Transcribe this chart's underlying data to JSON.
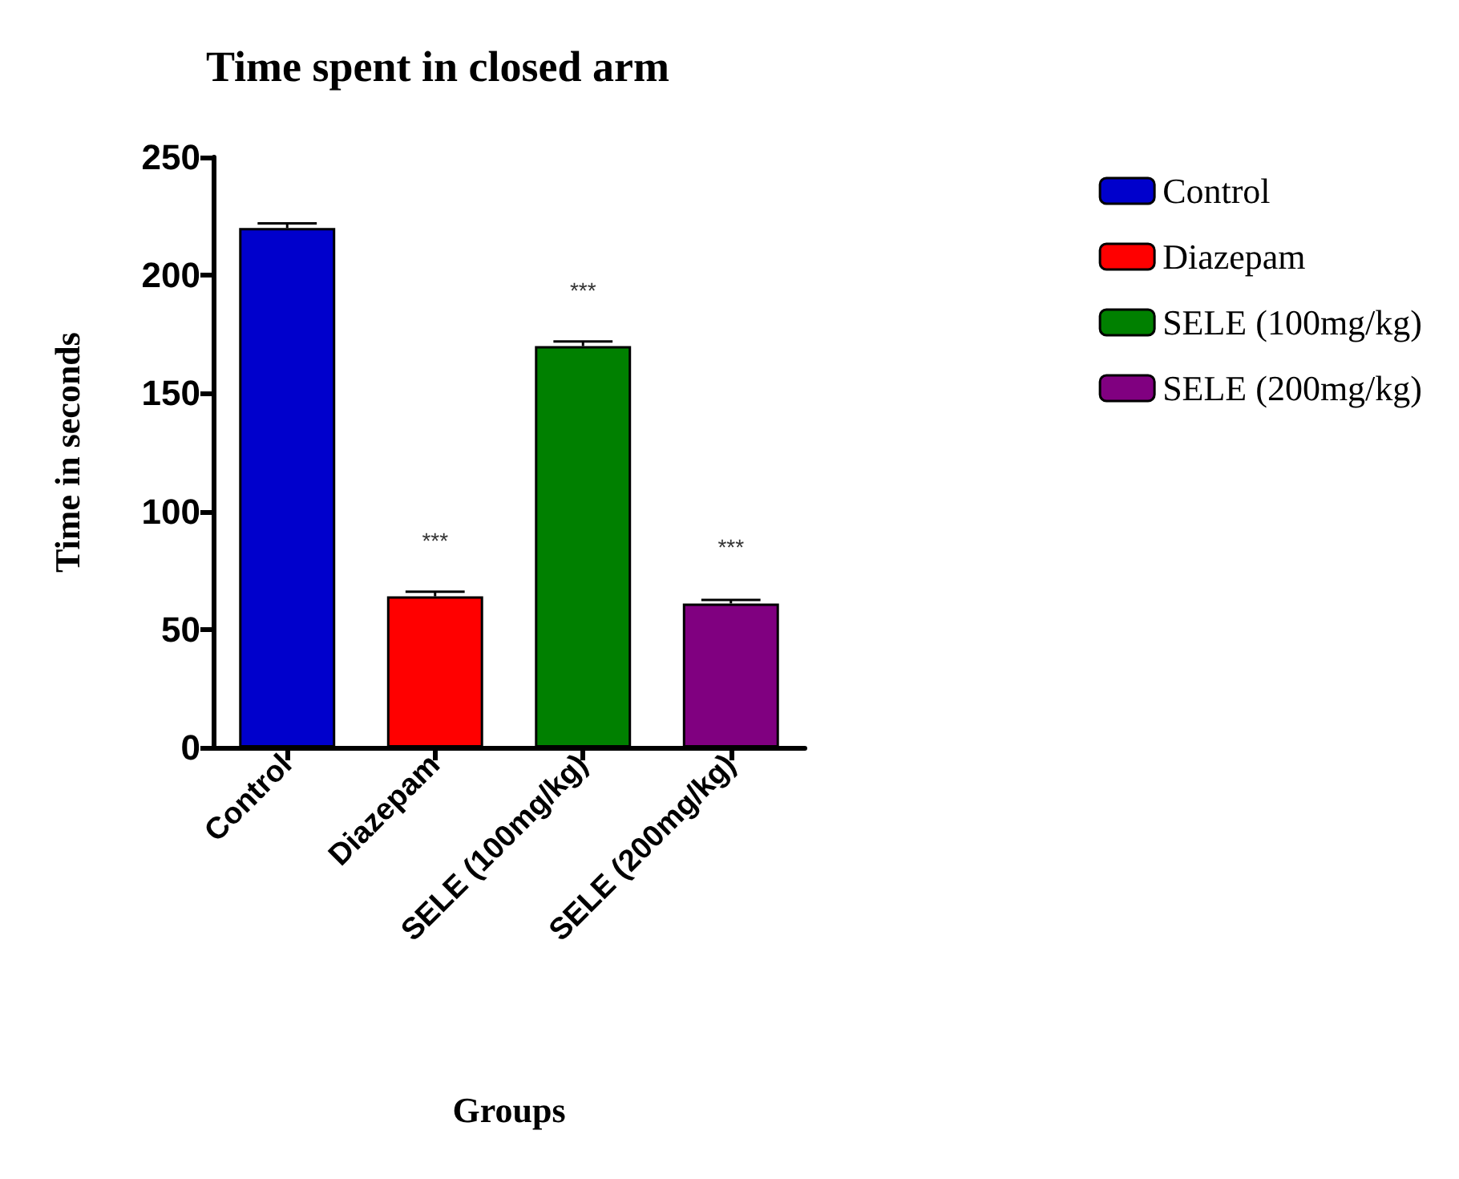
{
  "chart_data": {
    "type": "bar",
    "title": "Time spent in closed arm",
    "xlabel": "Groups",
    "ylabel": "Time in seconds",
    "categories": [
      "Control",
      "Diazepam",
      "SELE (100mg/kg)",
      "SELE (200mg/kg)"
    ],
    "stacked": true,
    "series": [
      {
        "name": "Control",
        "color": "#0000cc",
        "values": [
          220,
          null,
          null,
          null
        ],
        "errors": [
          2,
          null,
          null,
          null
        ]
      },
      {
        "name": "Diazepam",
        "color": "#ff0000",
        "values": [
          null,
          64,
          null,
          null
        ],
        "errors": [
          null,
          2,
          null,
          null
        ]
      },
      {
        "name": "SELE (100mg/kg)",
        "color": "#008000",
        "values": [
          null,
          null,
          170,
          null
        ],
        "errors": [
          null,
          null,
          2,
          null
        ]
      },
      {
        "name": "SELE (200mg/kg)",
        "color": "#800080",
        "values": [
          null,
          null,
          null,
          61
        ],
        "errors": [
          null,
          null,
          null,
          1.5
        ]
      }
    ],
    "ylim": [
      0,
      250
    ],
    "yticks": [
      0,
      50,
      100,
      150,
      200,
      250
    ],
    "grid": false,
    "legend": "right",
    "annotations": [
      {
        "text": "***",
        "x": "Diazepam",
        "y": 64
      },
      {
        "text": "***",
        "x": "SELE (100mg/kg)",
        "y": 170
      },
      {
        "text": "***",
        "x": "SELE (200mg/kg)",
        "y": 61
      }
    ]
  }
}
